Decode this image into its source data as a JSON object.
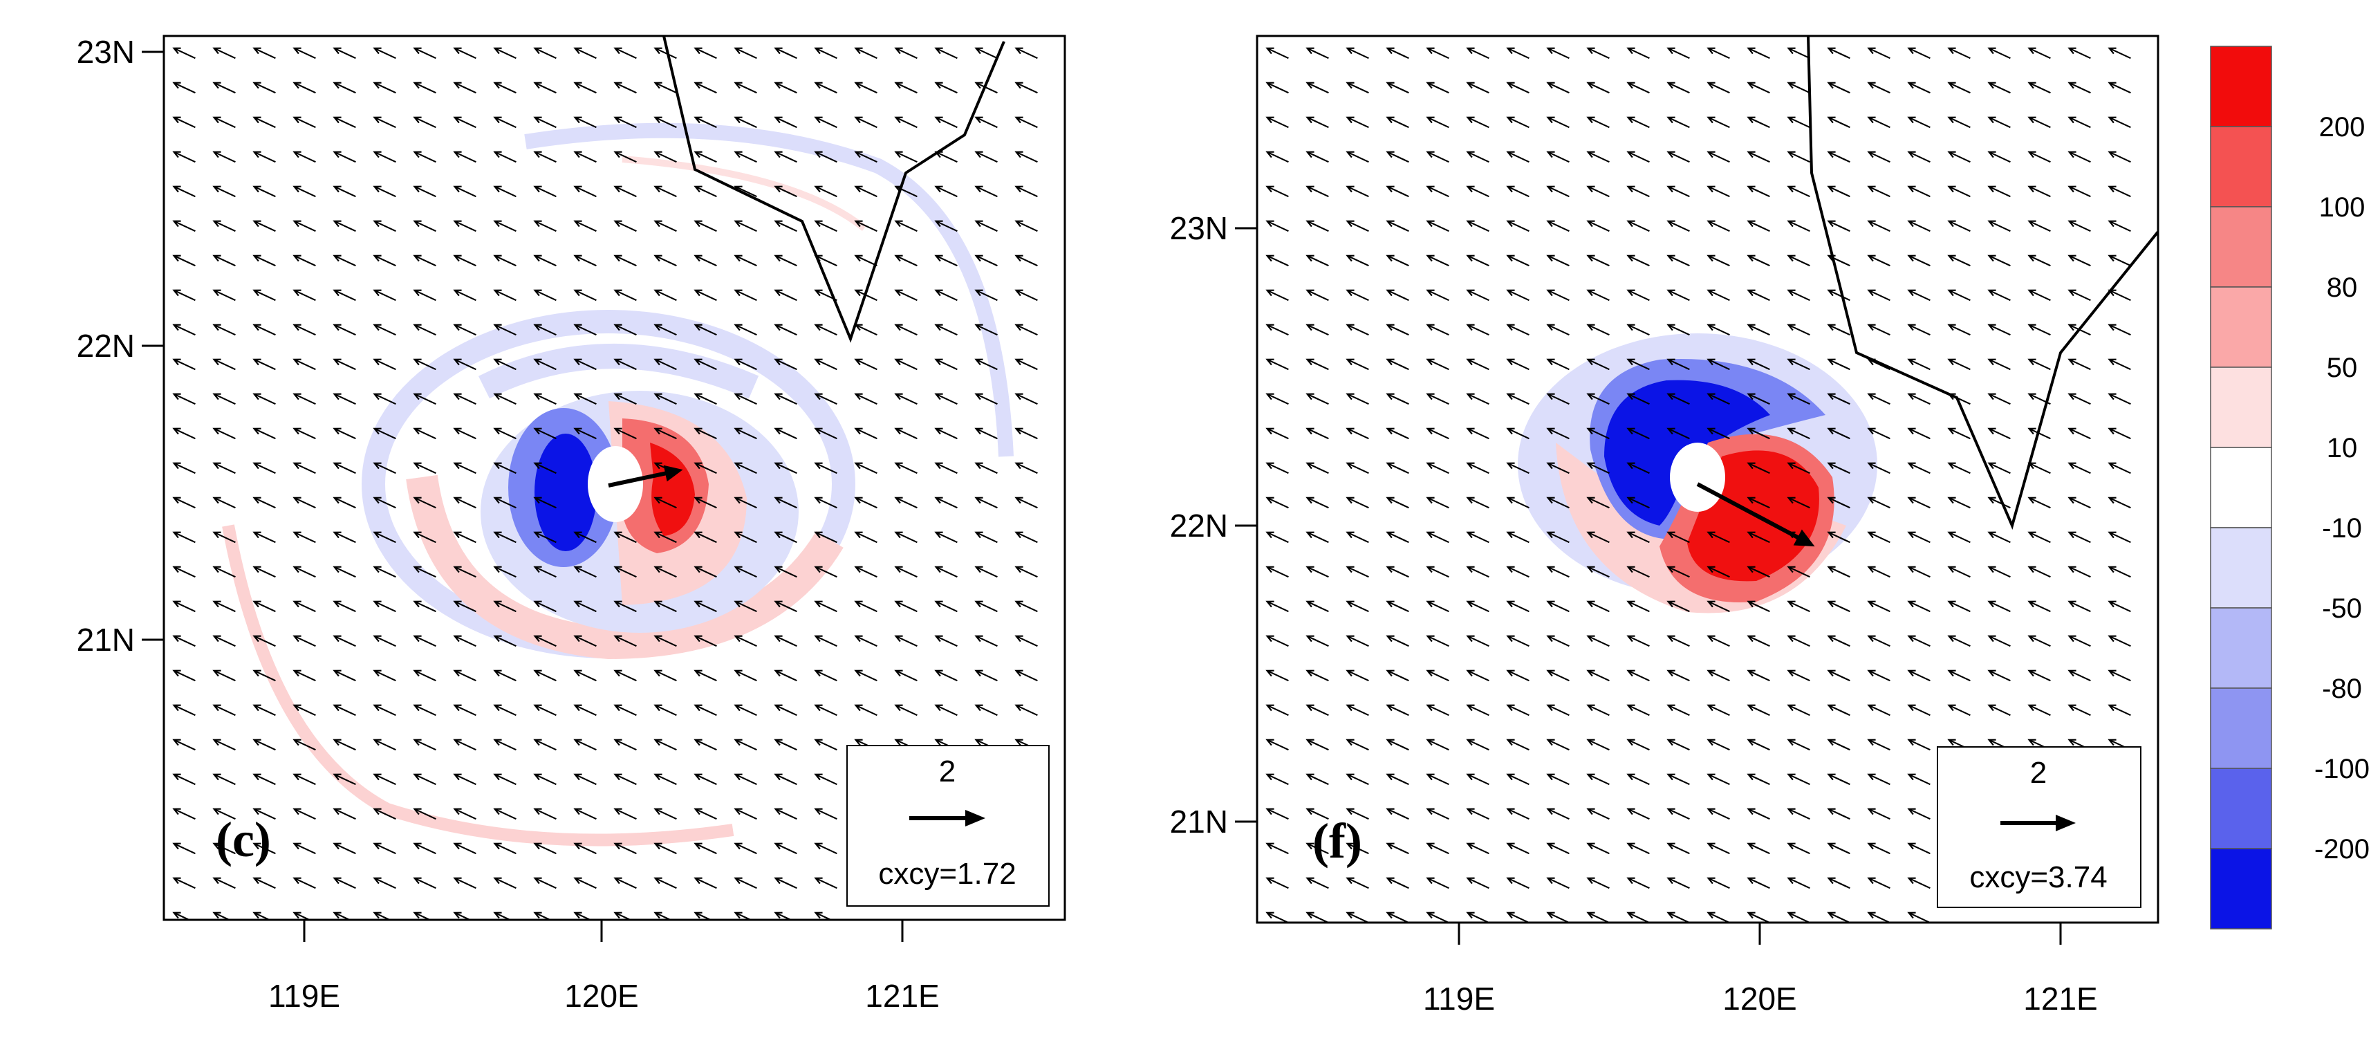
{
  "colors": {
    "pos_strong": "#f01010",
    "pos_mid": "#f46e6e",
    "pos_light": "#fcd2d2",
    "neg_strong": "#0b14e6",
    "neg_mid": "#7a86f4",
    "neg_light": "#d9dcfb",
    "arrow": "#000000",
    "coastline": "#000000"
  },
  "colorbar": {
    "labels": [
      "200",
      "100",
      "80",
      "50",
      "10",
      "-10",
      "-50",
      "-80",
      "-100",
      "-200"
    ],
    "fills": [
      "#f20c0c",
      "#f45252",
      "#f68686",
      "#faa8a8",
      "#fde0e0",
      "#ffffff",
      "#dcdefb",
      "#b3b8f7",
      "#8e95f2",
      "#5a62ec",
      "#0b14e6"
    ]
  },
  "panels": [
    {
      "letter": "(c)",
      "lon_ticks": [
        "119E",
        "120E",
        "121E"
      ],
      "lat_ticks": [
        "23N",
        "22N",
        "21N"
      ],
      "ref_vector": {
        "magnitude": "2",
        "caption": "cxcy=1.72"
      },
      "storm_vector_angle_deg": -12
    },
    {
      "letter": "(f)",
      "lon_ticks": [
        "119E",
        "120E",
        "121E"
      ],
      "lat_ticks": [
        "23N",
        "22N",
        "21N"
      ],
      "ref_vector": {
        "magnitude": "2",
        "caption": "cxcy=3.74"
      },
      "storm_vector_angle_deg": 28
    }
  ]
}
